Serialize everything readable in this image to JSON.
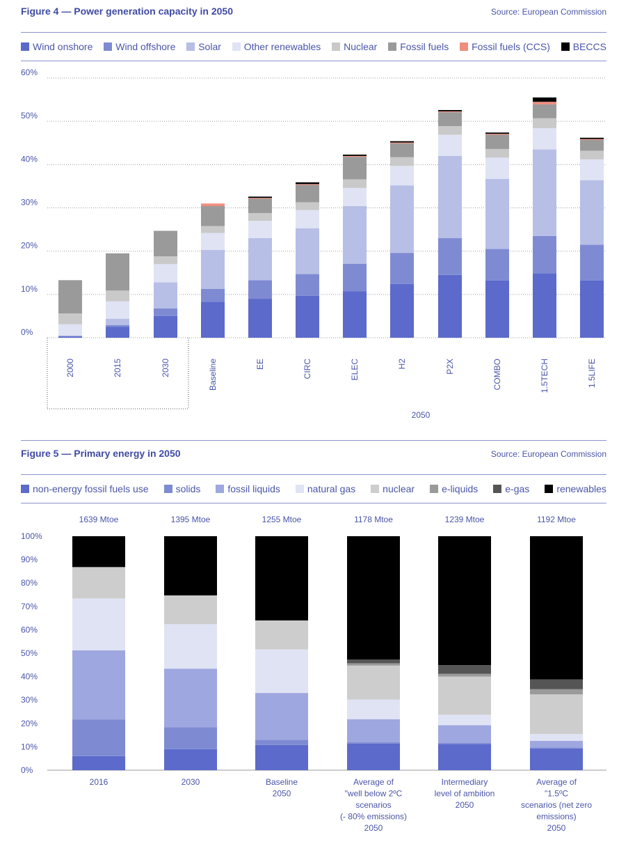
{
  "figure4": {
    "title": "Figure 4 — Power generation capacity in 2050",
    "source": "Source: European Commission",
    "legend": [
      {
        "label": "Wind onshore",
        "color": "#5b6acb"
      },
      {
        "label": "Wind offshore",
        "color": "#7e8bd3"
      },
      {
        "label": "Solar",
        "color": "#b7bfe6"
      },
      {
        "label": "Other renewables",
        "color": "#e0e3f4"
      },
      {
        "label": "Nuclear",
        "color": "#c9c9c9"
      },
      {
        "label": "Fossil fuels",
        "color": "#9a9a9a"
      },
      {
        "label": "Fossil fuels (CCS)",
        "color": "#ef8d7e"
      },
      {
        "label": "BECCS",
        "color": "#000000"
      }
    ],
    "group_label": "2050"
  },
  "figure5": {
    "title": "Figure 5 — Primary energy in 2050",
    "source": "Source: European Commission",
    "legend": [
      {
        "label": "non-energy fossil fuels use",
        "color": "#5b6acb"
      },
      {
        "label": "solids",
        "color": "#7e8bd3"
      },
      {
        "label": "fossil liquids",
        "color": "#9ea7df"
      },
      {
        "label": "natural gas",
        "color": "#e0e3f4"
      },
      {
        "label": "nuclear",
        "color": "#cdcdcd"
      },
      {
        "label": "e-liquids",
        "color": "#9a9a9a"
      },
      {
        "label": "e-gas",
        "color": "#555555"
      },
      {
        "label": "renewables",
        "color": "#000000"
      }
    ]
  },
  "chart_data": [
    {
      "type": "bar",
      "stacked": true,
      "title": "Figure 4 — Power generation capacity in 2050",
      "ylim": [
        0,
        60
      ],
      "yticks": [
        "0%",
        "10%",
        "20%",
        "30%",
        "40%",
        "50%",
        "60%"
      ],
      "categories": [
        "2000",
        "2015",
        "2030",
        "Baseline",
        "EE",
        "CIRC",
        "ELEC",
        "H2",
        "P2X",
        "COMBO",
        "1.5TECH",
        "1.5LIFE"
      ],
      "series": [
        {
          "name": "Wind onshore",
          "values": [
            0.3,
            2.5,
            5,
            8.3,
            9,
            9.7,
            10.7,
            12.4,
            14.5,
            13.2,
            14.8,
            13.2
          ]
        },
        {
          "name": "Wind offshore",
          "values": [
            0.1,
            0.4,
            1.8,
            3,
            4.3,
            5,
            6.4,
            7.2,
            8.5,
            7.3,
            8.7,
            8.3
          ]
        },
        {
          "name": "Solar",
          "values": [
            0.1,
            1.5,
            6,
            9,
            9.7,
            10.6,
            13.3,
            15.6,
            19,
            16.2,
            20,
            14.9
          ]
        },
        {
          "name": "Other renewables",
          "values": [
            2.6,
            4,
            4.2,
            3.9,
            4,
            4.2,
            4.2,
            4.5,
            4.9,
            4.9,
            4.9,
            4.8
          ]
        },
        {
          "name": "Nuclear",
          "values": [
            2.5,
            2.5,
            1.8,
            1.6,
            1.8,
            1.8,
            2,
            2,
            2,
            2,
            2.3,
            2
          ]
        },
        {
          "name": "Fossil fuels",
          "values": [
            7.7,
            8.6,
            5.9,
            4.6,
            3.3,
            4,
            5.2,
            3.2,
            3.2,
            3.3,
            3.2,
            2.5
          ]
        },
        {
          "name": "Fossil fuels (CCS)",
          "values": [
            0,
            0,
            0,
            0.6,
            0.2,
            0.2,
            0.2,
            0.2,
            0.2,
            0.2,
            0.6,
            0.2
          ]
        },
        {
          "name": "BECCS",
          "values": [
            0,
            0,
            0,
            0,
            0.3,
            0.4,
            0.3,
            0.3,
            0.3,
            0.3,
            1,
            0.3
          ]
        }
      ],
      "group_label": "2050"
    },
    {
      "type": "bar",
      "stacked": true,
      "percent": true,
      "title": "Figure 5 — Primary energy in 2050",
      "ylim": [
        0,
        100
      ],
      "yticks": [
        "0%",
        "10%",
        "20%",
        "30%",
        "40%",
        "50%",
        "60%",
        "70%",
        "80%",
        "90%",
        "100%"
      ],
      "totals": [
        "1639 Mtoe",
        "1395 Mtoe",
        "1255 Mtoe",
        "1178 Mtoe",
        "1239 Mtoe",
        "1192 Mtoe"
      ],
      "categories": [
        [
          "2016"
        ],
        [
          "2030"
        ],
        [
          "Baseline",
          "2050"
        ],
        [
          "Average of",
          "\"well below 2ºC",
          "scenarios",
          "(- 80% emissions)",
          "2050"
        ],
        [
          "Intermediary",
          "level of ambition",
          "2050"
        ],
        [
          "Average of",
          "\"1.5ºC",
          "scenarios (net zero",
          "emissions)",
          "2050"
        ]
      ],
      "series": [
        {
          "name": "non-energy fossil fuels use",
          "values": [
            6,
            9,
            10.8,
            11.4,
            11.2,
            9.3
          ]
        },
        {
          "name": "solids",
          "values": [
            15.7,
            9.4,
            2.2,
            0.6,
            0.4,
            0.4
          ]
        },
        {
          "name": "fossil liquids",
          "values": [
            29.5,
            25,
            20,
            9.8,
            7.6,
            2.8
          ]
        },
        {
          "name": "natural gas",
          "values": [
            22.2,
            19,
            18.6,
            8.4,
            4.5,
            3
          ]
        },
        {
          "name": "nuclear",
          "values": [
            13.4,
            12.3,
            12.4,
            14.5,
            16.3,
            16.9
          ]
        },
        {
          "name": "e-liquids",
          "values": [
            0,
            0,
            0,
            1,
            1.2,
            2.2
          ]
        },
        {
          "name": "e-gas",
          "values": [
            0,
            0,
            0,
            1.6,
            3.7,
            4.2
          ]
        },
        {
          "name": "renewables",
          "values": [
            13.2,
            25.3,
            36,
            52.7,
            55.1,
            61.2
          ]
        }
      ]
    }
  ]
}
